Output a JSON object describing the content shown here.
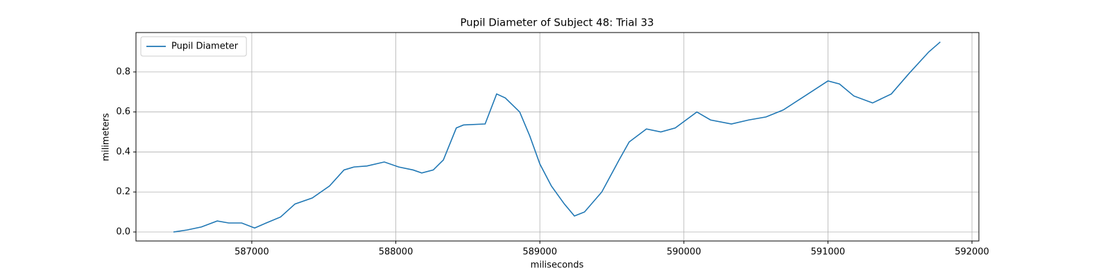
{
  "chart_data": {
    "type": "line",
    "title": "Pupil Diameter of Subject 48: Trial 33",
    "x_label": "miliseconds",
    "y_label": "milimeters",
    "x": [
      586456,
      586550,
      586650,
      586760,
      586840,
      586930,
      587020,
      587100,
      587200,
      587300,
      587420,
      587540,
      587640,
      587710,
      587800,
      587920,
      588020,
      588120,
      588180,
      588260,
      588330,
      588420,
      588470,
      588620,
      588700,
      588760,
      588860,
      588930,
      589000,
      589080,
      589170,
      589240,
      589310,
      589430,
      589550,
      589620,
      589740,
      589840,
      589940,
      590090,
      590185,
      590330,
      590450,
      590570,
      590690,
      590840,
      591000,
      591080,
      591180,
      591310,
      591440,
      591560,
      591700,
      591780
    ],
    "series": [
      {
        "name": "Pupil Diameter",
        "color": "#1f77b4",
        "values": [
          0.0,
          0.01,
          0.025,
          0.055,
          0.045,
          0.045,
          0.02,
          0.045,
          0.075,
          0.14,
          0.17,
          0.23,
          0.31,
          0.325,
          0.33,
          0.35,
          0.325,
          0.31,
          0.295,
          0.31,
          0.36,
          0.52,
          0.535,
          0.54,
          0.69,
          0.67,
          0.6,
          0.48,
          0.34,
          0.23,
          0.14,
          0.08,
          0.1,
          0.2,
          0.36,
          0.45,
          0.515,
          0.5,
          0.52,
          0.6,
          0.56,
          0.54,
          0.56,
          0.575,
          0.61,
          0.68,
          0.755,
          0.74,
          0.68,
          0.645,
          0.69,
          0.79,
          0.9,
          0.95
        ]
      }
    ],
    "xlim": [
      586196,
      592048
    ],
    "ylim": [
      -0.045,
      0.997
    ],
    "xticks": [
      587000,
      588000,
      589000,
      590000,
      591000,
      592000
    ],
    "yticks": [
      {
        "value": 0,
        "label": "0.0"
      },
      0.2,
      0.4,
      0.6,
      0.8
    ],
    "grid": true,
    "legend": "upper left"
  }
}
